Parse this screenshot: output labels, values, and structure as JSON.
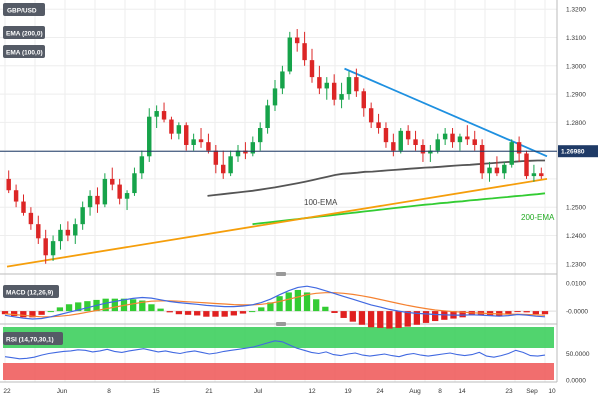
{
  "header": {
    "symbol": "GBP/USD",
    "ema200_badge": "EMA (200,0)",
    "ema100_badge": "EMA (100,0)"
  },
  "panels": {
    "macd_label": "MACD (12,26,9)",
    "rsi_label": "RSI (14,70,30,1)"
  },
  "annotations": {
    "ema100": "100-EMA",
    "ema200": "200-EMA"
  },
  "current_price": "1.26980",
  "colors": {
    "up": "#16a34a",
    "down": "#dc2626",
    "ema100": "#555555",
    "ema200": "#33cc33",
    "trend_support": "#f59e0b",
    "trend_resistance": "#1e90e0",
    "price_line": "#1f3a66",
    "macd_line": "#4169e1",
    "signal_line": "#f58231",
    "rsi_line": "#4169e1",
    "rsi_overbought": "#33cc55",
    "rsi_oversold": "#ee5555"
  },
  "chart_data": {
    "type": "candlestick",
    "title": "GBP/USD",
    "ylim": [
      1.2285,
      1.3215
    ],
    "price_ticks": [
      "1.3200",
      "1.3100",
      "1.3000",
      "1.2900",
      "1.2800",
      "1.2700",
      "1.2500",
      "1.2400",
      "1.2300"
    ],
    "x_ticks": [
      "22",
      "Jun",
      "8",
      "15",
      "21",
      "Jul",
      "12",
      "19",
      "24",
      "Aug",
      "8",
      "14",
      "23",
      "Sep",
      "10"
    ],
    "ohlc": [
      [
        1.26,
        1.263,
        1.255,
        1.256
      ],
      [
        1.256,
        1.258,
        1.25,
        1.252
      ],
      [
        1.252,
        1.2545,
        1.247,
        1.248
      ],
      [
        1.248,
        1.25,
        1.242,
        1.244
      ],
      [
        1.244,
        1.247,
        1.237,
        1.239
      ],
      [
        1.239,
        1.242,
        1.23,
        1.233
      ],
      [
        1.233,
        1.24,
        1.231,
        1.238
      ],
      [
        1.238,
        1.244,
        1.235,
        1.242
      ],
      [
        1.242,
        1.245,
        1.238,
        1.24
      ],
      [
        1.24,
        1.246,
        1.237,
        1.244
      ],
      [
        1.244,
        1.252,
        1.242,
        1.25
      ],
      [
        1.25,
        1.256,
        1.247,
        1.254
      ],
      [
        1.254,
        1.257,
        1.248,
        1.251
      ],
      [
        1.251,
        1.262,
        1.25,
        1.26
      ],
      [
        1.26,
        1.264,
        1.256,
        1.258
      ],
      [
        1.258,
        1.26,
        1.251,
        1.253
      ],
      [
        1.253,
        1.256,
        1.249,
        1.255
      ],
      [
        1.255,
        1.264,
        1.254,
        1.262
      ],
      [
        1.262,
        1.27,
        1.26,
        1.268
      ],
      [
        1.268,
        1.285,
        1.266,
        1.282
      ],
      [
        1.282,
        1.286,
        1.278,
        1.284
      ],
      [
        1.284,
        1.287,
        1.28,
        1.281
      ],
      [
        1.281,
        1.282,
        1.274,
        1.276
      ],
      [
        1.276,
        1.28,
        1.274,
        1.279
      ],
      [
        1.279,
        1.28,
        1.27,
        1.272
      ],
      [
        1.272,
        1.276,
        1.27,
        1.274
      ],
      [
        1.274,
        1.278,
        1.271,
        1.273
      ],
      [
        1.273,
        1.276,
        1.269,
        1.27
      ],
      [
        1.27,
        1.272,
        1.262,
        1.265
      ],
      [
        1.265,
        1.27,
        1.26,
        1.262
      ],
      [
        1.262,
        1.27,
        1.261,
        1.268
      ],
      [
        1.268,
        1.272,
        1.266,
        1.27
      ],
      [
        1.27,
        1.273,
        1.267,
        1.269
      ],
      [
        1.269,
        1.275,
        1.268,
        1.273
      ],
      [
        1.273,
        1.28,
        1.27,
        1.278
      ],
      [
        1.278,
        1.288,
        1.276,
        1.286
      ],
      [
        1.286,
        1.295,
        1.284,
        1.292
      ],
      [
        1.292,
        1.3,
        1.29,
        1.298
      ],
      [
        1.298,
        1.312,
        1.297,
        1.31
      ],
      [
        1.31,
        1.313,
        1.305,
        1.308
      ],
      [
        1.308,
        1.312,
        1.3,
        1.302
      ],
      [
        1.302,
        1.306,
        1.294,
        1.296
      ],
      [
        1.296,
        1.3,
        1.29,
        1.292
      ],
      [
        1.292,
        1.296,
        1.288,
        1.294
      ],
      [
        1.294,
        1.297,
        1.286,
        1.288
      ],
      [
        1.288,
        1.294,
        1.285,
        1.29
      ],
      [
        1.29,
        1.298,
        1.288,
        1.296
      ],
      [
        1.296,
        1.299,
        1.289,
        1.291
      ],
      [
        1.291,
        1.292,
        1.282,
        1.285
      ],
      [
        1.285,
        1.287,
        1.278,
        1.28
      ],
      [
        1.28,
        1.283,
        1.276,
        1.278
      ],
      [
        1.278,
        1.28,
        1.271,
        1.273
      ],
      [
        1.273,
        1.276,
        1.268,
        1.27
      ],
      [
        1.27,
        1.278,
        1.269,
        1.277
      ],
      [
        1.277,
        1.279,
        1.272,
        1.274
      ],
      [
        1.274,
        1.277,
        1.27,
        1.272
      ],
      [
        1.272,
        1.274,
        1.266,
        1.269
      ],
      [
        1.269,
        1.272,
        1.266,
        1.27
      ],
      [
        1.27,
        1.276,
        1.269,
        1.274
      ],
      [
        1.274,
        1.278,
        1.272,
        1.276
      ],
      [
        1.276,
        1.278,
        1.271,
        1.273
      ],
      [
        1.273,
        1.276,
        1.27,
        1.275
      ],
      [
        1.275,
        1.279,
        1.272,
        1.274
      ],
      [
        1.274,
        1.277,
        1.27,
        1.272
      ],
      [
        1.272,
        1.274,
        1.26,
        1.262
      ],
      [
        1.262,
        1.266,
        1.259,
        1.264
      ],
      [
        1.264,
        1.268,
        1.261,
        1.262
      ],
      [
        1.262,
        1.266,
        1.26,
        1.265
      ],
      [
        1.265,
        1.274,
        1.264,
        1.273
      ],
      [
        1.273,
        1.275,
        1.266,
        1.269
      ],
      [
        1.269,
        1.27,
        1.26,
        1.261
      ],
      [
        1.261,
        1.265,
        1.259,
        1.262
      ],
      [
        1.262,
        1.264,
        1.26,
        1.261
      ]
    ],
    "ema100": [
      1.254,
      1.2543,
      1.2546,
      1.2549,
      1.2552,
      1.2555,
      1.2558,
      1.2562,
      1.2566,
      1.257,
      1.2575,
      1.258,
      1.2585,
      1.259,
      1.2596,
      1.2602,
      1.2608,
      1.2614,
      1.2618,
      1.262,
      1.2622,
      1.2625,
      1.2626,
      1.2628,
      1.263,
      1.2632,
      1.2634,
      1.2636,
      1.2638,
      1.264,
      1.2641,
      1.2643,
      1.2645,
      1.2647,
      1.2649,
      1.265,
      1.2652,
      1.2654,
      1.2656,
      1.2658,
      1.266,
      1.2661,
      1.2663,
      1.2664,
      1.2665,
      1.2665
    ],
    "ema200": [
      1.244,
      1.2443,
      1.2446,
      1.2449,
      1.2452,
      1.2455,
      1.2458,
      1.2461,
      1.2464,
      1.2467,
      1.247,
      1.2473,
      1.2476,
      1.2479,
      1.2482,
      1.2485,
      1.2488,
      1.2491,
      1.2494,
      1.2497,
      1.25,
      1.2503,
      1.2506,
      1.2509,
      1.2511,
      1.2514,
      1.2516,
      1.2519,
      1.2521,
      1.2524,
      1.2526,
      1.2529,
      1.2531,
      1.2534,
      1.2536,
      1.2539,
      1.2541,
      1.2544,
      1.2546,
      1.2549
    ],
    "support_trendline": [
      [
        0,
        1.229
      ],
      [
        72,
        1.26
      ]
    ],
    "resistance_trendline": [
      [
        45,
        1.299
      ],
      [
        72,
        1.268
      ]
    ],
    "current_price": 1.2698,
    "macd": {
      "ylim": [
        -0.0035,
        0.011
      ],
      "ticks": [
        "0.0100",
        "-0.0000"
      ],
      "macd_line": [
        -0.0015,
        -0.002,
        -0.0025,
        -0.0028,
        -0.0026,
        -0.002,
        -0.0012,
        -0.0004,
        0.0004,
        0.0012,
        0.002,
        0.0028,
        0.0034,
        0.004,
        0.0045,
        0.0048,
        0.0046,
        0.004,
        0.0034,
        0.003,
        0.0027,
        0.0024,
        0.002,
        0.0018,
        0.0016,
        0.0016,
        0.0018,
        0.0022,
        0.003,
        0.0042,
        0.0058,
        0.0072,
        0.0084,
        0.0088,
        0.0082,
        0.0072,
        0.0062,
        0.0052,
        0.0042,
        0.0032,
        0.0022,
        0.0014,
        0.0006,
        0.0,
        -0.0005,
        -0.0008,
        -0.001,
        -0.0012,
        -0.0013,
        -0.0014,
        -0.0014,
        -0.0013,
        -0.0014,
        -0.0016,
        -0.0018,
        -0.0016,
        -0.0012,
        -0.0014,
        -0.0018,
        -0.002
      ],
      "signal_line": [
        -0.001,
        -0.0012,
        -0.0015,
        -0.0018,
        -0.002,
        -0.002,
        -0.0018,
        -0.0015,
        -0.001,
        -0.0004,
        0.0002,
        0.0008,
        0.0014,
        0.002,
        0.0026,
        0.0031,
        0.0035,
        0.0036,
        0.0036,
        0.0035,
        0.0033,
        0.0031,
        0.0029,
        0.0027,
        0.0025,
        0.0023,
        0.0022,
        0.0022,
        0.0024,
        0.0028,
        0.0034,
        0.0042,
        0.005,
        0.0058,
        0.0063,
        0.0065,
        0.0065,
        0.0063,
        0.0059,
        0.0054,
        0.0048,
        0.0041,
        0.0034,
        0.0027,
        0.002,
        0.0014,
        0.0009,
        0.0004,
        0.0001,
        -0.0002,
        -0.0004,
        -0.0006,
        -0.0007,
        -0.0009,
        -0.001,
        -0.0011,
        -0.0011,
        -0.0012,
        -0.0013,
        -0.0015
      ]
    },
    "rsi": {
      "ylim": [
        0,
        100
      ],
      "ticks": [
        "50.0000",
        "0.0000"
      ],
      "overbought": 70,
      "oversold": 30,
      "values": [
        44,
        42,
        40,
        41,
        43,
        47,
        50,
        52,
        54,
        55,
        57,
        56,
        53,
        55,
        58,
        54,
        52,
        55,
        57,
        59,
        56,
        53,
        55,
        52,
        50,
        53,
        55,
        52,
        49,
        51,
        54,
        56,
        58,
        60,
        62,
        66,
        70,
        74,
        72,
        66,
        60,
        56,
        52,
        50,
        53,
        48,
        46,
        49,
        51,
        47,
        45,
        47,
        49,
        46,
        44,
        48,
        50,
        47,
        45,
        47,
        49,
        51,
        48,
        46,
        48,
        52,
        45,
        43,
        46,
        50,
        56,
        52,
        46,
        45,
        47
      ]
    }
  }
}
